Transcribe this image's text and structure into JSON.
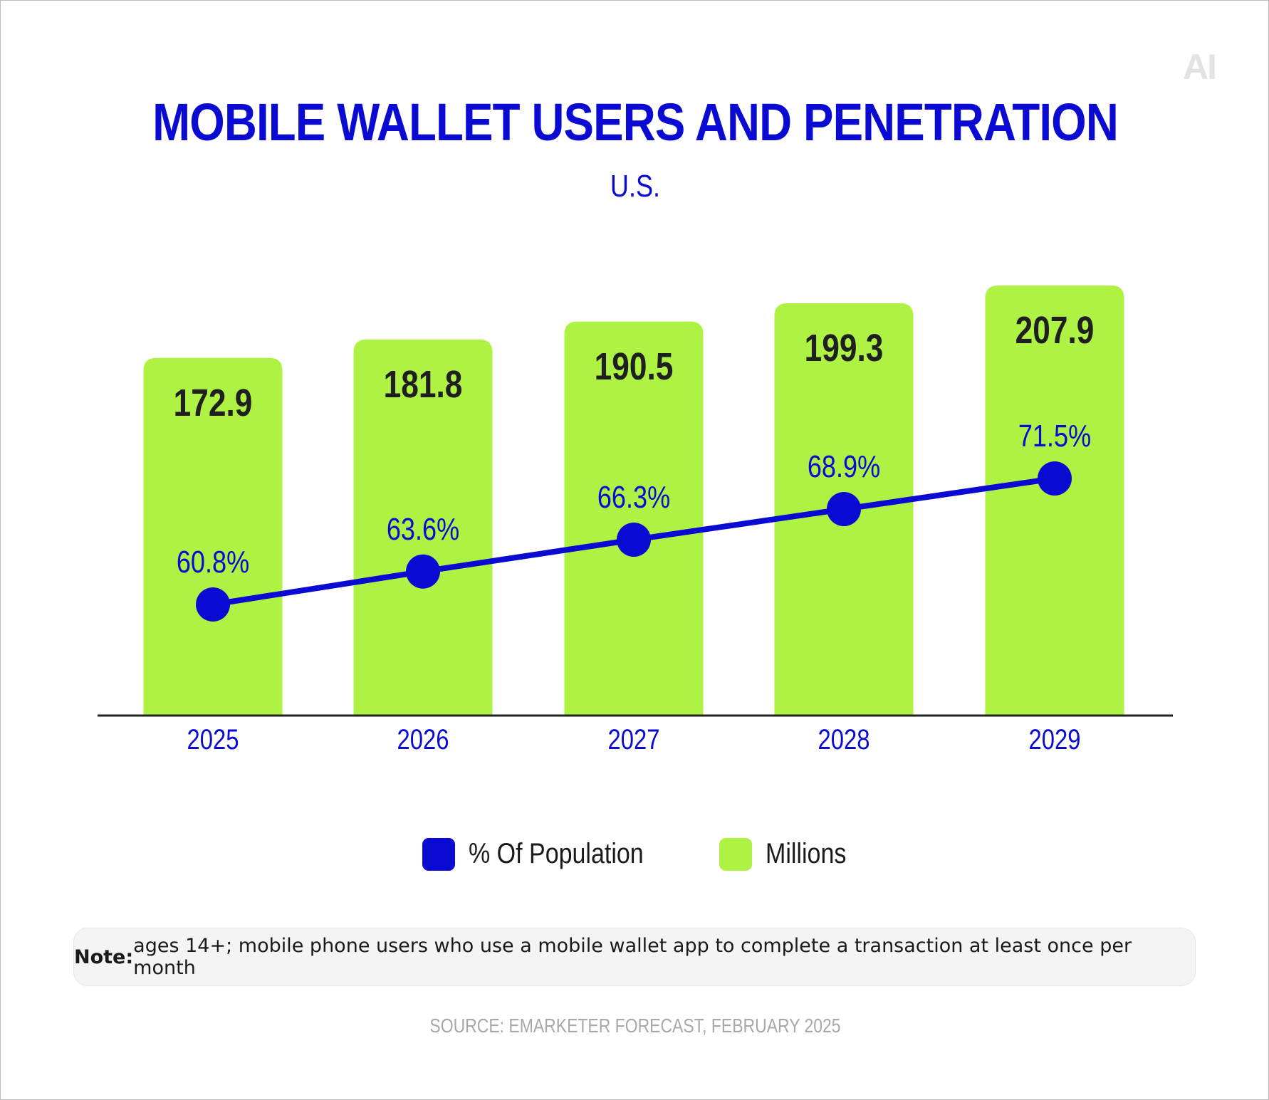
{
  "logo_text": "AI",
  "note": {
    "label": "Note:",
    "text": "ages 14+; mobile phone users who use a mobile wallet app to complete a transaction at least once per month"
  },
  "source": "SOURCE: EMARKETER FORECAST, FEBRUARY 2025",
  "colors": {
    "line": "#0a0ad2",
    "bar": "#aef243",
    "axis": "#222222",
    "bar_label": "#1f1f1f"
  },
  "chart_data": {
    "type": "bar+line",
    "title": "MOBILE WALLET USERS AND PENETRATION",
    "subtitle": "U.S.",
    "categories": [
      "2025",
      "2026",
      "2027",
      "2028",
      "2029"
    ],
    "series": [
      {
        "name": "Millions",
        "type": "bar",
        "values": [
          172.9,
          181.8,
          190.5,
          199.3,
          207.9
        ],
        "labels": [
          "172.9",
          "181.8",
          "190.5",
          "199.3",
          "207.9"
        ]
      },
      {
        "name": "% Of Population",
        "type": "line",
        "values": [
          60.8,
          63.6,
          66.3,
          68.9,
          71.5
        ],
        "labels": [
          "60.8%",
          "63.6%",
          "66.3%",
          "68.9%",
          "71.5%"
        ]
      }
    ],
    "legend": {
      "position": "bottom",
      "items": [
        "% Of Population",
        "Millions"
      ]
    },
    "grid": false
  }
}
